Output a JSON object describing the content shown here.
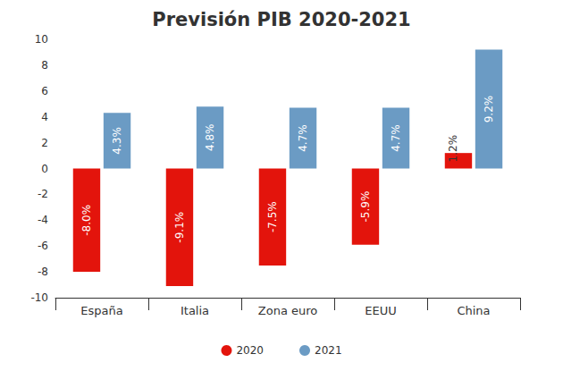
{
  "chart_data": {
    "type": "bar",
    "title": "Previsión PIB 2020-2021",
    "categories": [
      "España",
      "Italia",
      "Zona euro",
      "EEUU",
      "China"
    ],
    "series": [
      {
        "name": "2020",
        "color": "#e3140c",
        "values": [
          -8.0,
          -9.1,
          -7.5,
          -5.9,
          1.2
        ],
        "value_labels": [
          "-8.0%",
          "-9.1%",
          "-7.5%",
          "-5.9%",
          "1.2%"
        ]
      },
      {
        "name": "2021",
        "color": "#6b9bc4",
        "values": [
          4.3,
          4.8,
          4.7,
          4.7,
          9.2
        ],
        "value_labels": [
          "4.3%",
          "4.8%",
          "4.7%",
          "4.7%",
          "9.2%"
        ]
      }
    ],
    "ylim": [
      -10,
      10
    ],
    "yticks": [
      -10,
      -8,
      -6,
      -4,
      -2,
      0,
      2,
      4,
      6,
      8,
      10
    ],
    "grid": false,
    "legend": "bottom",
    "data_labels": true
  }
}
